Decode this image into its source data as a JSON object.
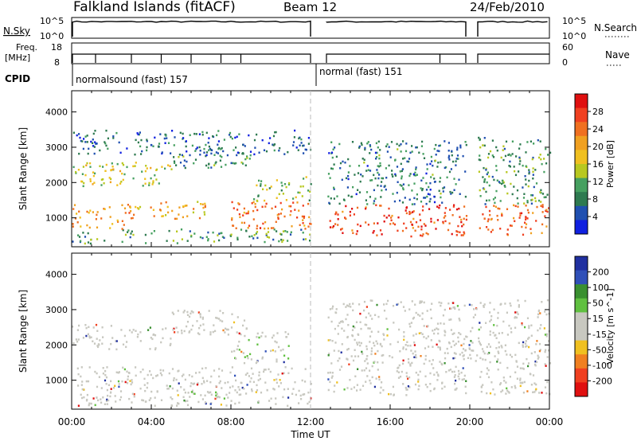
{
  "header": {
    "station": "Falkland Islands (fitACF)",
    "beam": "Beam 12",
    "date": "24/Feb/2010"
  },
  "panels": {
    "nsky_label": "N.Sky",
    "nsky_ticks": [
      "10^5",
      "10^0"
    ],
    "nsearch_label": "N.Search",
    "freq_label": [
      "Freq.",
      "[MHz]"
    ],
    "freq_ticks": [
      "18",
      "8"
    ],
    "nave_label": "Nave",
    "nave_ticks": [
      "60",
      "0"
    ],
    "cpid_label": "CPID",
    "cpid_segments": [
      "normalsound (fast) 157",
      "normal (fast) 151"
    ]
  },
  "colors": {
    "power_scale": [
      "#1020e0",
      "#2050b0",
      "#2e7a50",
      "#46a060",
      "#b8c820",
      "#f0c020",
      "#f0a020",
      "#f07020",
      "#f04020",
      "#e01010"
    ],
    "velocity_scale": [
      "#2030a0",
      "#3050b8",
      "#3a9030",
      "#60c040",
      "#c8c8c0",
      "#c8c8c0",
      "#f0c020",
      "#f08020",
      "#f04020",
      "#e01010"
    ]
  },
  "chart_data": [
    {
      "type": "heatmap",
      "title": "Power",
      "ylabel": "Slant Range [km]",
      "xlabel": "Time UT",
      "x_ticks": [
        "00:00",
        "04:00",
        "08:00",
        "12:00",
        "16:00",
        "20:00",
        "00:00"
      ],
      "y_ticks": [
        "1000",
        "2000",
        "3000",
        "4000"
      ],
      "ylim": [
        180,
        4600
      ],
      "xlim_hours": [
        0,
        24
      ],
      "colorbar_label": "Power [dB]",
      "colorbar_ticks": [
        "4",
        "8",
        "12",
        "16",
        "20",
        "24",
        "28"
      ],
      "colorbar_range": [
        0,
        32
      ],
      "scatter_regions": [
        {
          "t0": 0.0,
          "t1": 12.0,
          "r0": 300,
          "r1": 700,
          "value": 10
        },
        {
          "t0": 0.0,
          "t1": 3.0,
          "r0": 700,
          "r1": 1400,
          "value": 22
        },
        {
          "t0": 3.0,
          "t1": 7.0,
          "r0": 1000,
          "r1": 1500,
          "value": 20
        },
        {
          "t0": 8.0,
          "t1": 12.0,
          "r0": 700,
          "r1": 1500,
          "value": 24
        },
        {
          "t0": 0.0,
          "t1": 5.0,
          "r0": 1900,
          "r1": 2600,
          "value": 15
        },
        {
          "t0": 5.0,
          "t1": 9.0,
          "r0": 2400,
          "r1": 3000,
          "value": 9
        },
        {
          "t0": 9.0,
          "t1": 12.0,
          "r0": 1500,
          "r1": 2200,
          "value": 13
        },
        {
          "t0": 0.0,
          "t1": 12.0,
          "r0": 2800,
          "r1": 3500,
          "value": 6
        },
        {
          "t0": 12.8,
          "t1": 19.8,
          "r0": 500,
          "r1": 1400,
          "value": 27
        },
        {
          "t0": 12.8,
          "t1": 19.8,
          "r0": 1400,
          "r1": 3200,
          "value": 8
        },
        {
          "t0": 20.4,
          "t1": 24.0,
          "r0": 500,
          "r1": 1400,
          "value": 25
        },
        {
          "t0": 20.4,
          "t1": 24.0,
          "r0": 1400,
          "r1": 3300,
          "value": 10
        }
      ]
    },
    {
      "type": "heatmap",
      "title": "Velocity",
      "ylabel": "Slant Range [km]",
      "xlabel": "Time UT",
      "x_ticks": [
        "00:00",
        "04:00",
        "08:00",
        "12:00",
        "16:00",
        "20:00",
        "00:00"
      ],
      "y_ticks": [
        "1000",
        "2000",
        "3000",
        "4000"
      ],
      "ylim": [
        180,
        4600
      ],
      "xlim_hours": [
        0,
        24
      ],
      "colorbar_label": "Velocity [m s^-1]",
      "colorbar_ticks": [
        "200",
        "100",
        "50",
        "15",
        "-15",
        "-50",
        "-100",
        "-200"
      ],
      "scatter_regions": [
        {
          "t0": 0.0,
          "t1": 12.0,
          "r0": 300,
          "r1": 1400,
          "value": 0
        },
        {
          "t0": 0.0,
          "t1": 5.0,
          "r0": 1900,
          "r1": 2600,
          "value": 0
        },
        {
          "t0": 5.0,
          "t1": 9.0,
          "r0": 2300,
          "r1": 3000,
          "value": 0
        },
        {
          "t0": 8.0,
          "t1": 11.0,
          "r0": 1500,
          "r1": 2400,
          "value": 30
        },
        {
          "t0": 5.5,
          "t1": 8.0,
          "r0": 350,
          "r1": 700,
          "value": 40
        },
        {
          "t0": 12.8,
          "t1": 19.8,
          "r0": 600,
          "r1": 1400,
          "value": 0
        },
        {
          "t0": 20.4,
          "t1": 24.0,
          "r0": 600,
          "r1": 1400,
          "value": 0
        },
        {
          "t0": 12.8,
          "t1": 24.0,
          "r0": 1400,
          "r1": 3300,
          "value": -20
        }
      ]
    }
  ]
}
